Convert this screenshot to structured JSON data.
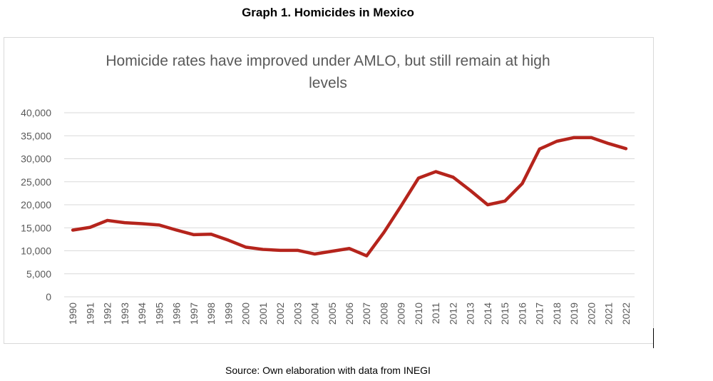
{
  "figure_title": "Graph 1. Homicides in Mexico",
  "source": "Source: Own elaboration with data from INEGI",
  "chart_data": {
    "type": "line",
    "title": "Homicide rates have improved under AMLO, but still remain at high levels",
    "title_lines": [
      "Homicide rates have improved under AMLO, but still remain at high",
      "levels"
    ],
    "xlabel": "",
    "ylabel": "",
    "ylim": [
      0,
      40000
    ],
    "yticks": [
      "0",
      "5,000",
      "10,000",
      "15,000",
      "20,000",
      "25,000",
      "30,000",
      "35,000",
      "40,000"
    ],
    "grid": true,
    "line_color": "#b5241c",
    "x": [
      "1990",
      "1991",
      "1992",
      "1993",
      "1994",
      "1995",
      "1996",
      "1997",
      "1998",
      "1999",
      "2000",
      "2001",
      "2002",
      "2003",
      "2004",
      "2005",
      "2006",
      "2007",
      "2008",
      "2009",
      "2010",
      "2011",
      "2012",
      "2013",
      "2014",
      "2015",
      "2016",
      "2017",
      "2018",
      "2019",
      "2020",
      "2021",
      "2022"
    ],
    "values": [
      14500,
      15100,
      16600,
      16100,
      15900,
      15600,
      14500,
      13500,
      13600,
      12300,
      10800,
      10300,
      10100,
      10100,
      9300,
      9900,
      10500,
      8900,
      14000,
      19800,
      25800,
      27200,
      26000,
      23100,
      20000,
      20800,
      24600,
      32100,
      33800,
      34600,
      34600,
      33300,
      32200
    ]
  }
}
